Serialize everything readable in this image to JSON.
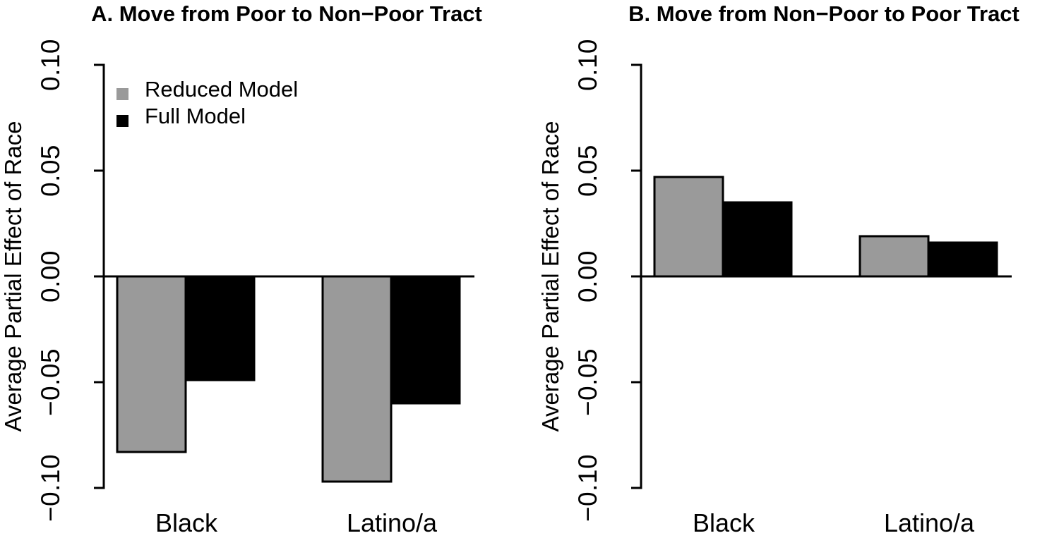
{
  "figure": {
    "background": "#ffffff",
    "text_color": "#000000"
  },
  "chart_data": [
    {
      "type": "bar",
      "panel": "A",
      "title": "A. Move from Poor to Non−Poor Tract",
      "ylabel": "Average Partial Effect of Race",
      "xlabel": "",
      "categories": [
        "Black",
        "Latino/a"
      ],
      "series": [
        {
          "name": "Reduced Model",
          "color": "#9a9a9a",
          "values": [
            -0.083,
            -0.097
          ]
        },
        {
          "name": "Full Model",
          "color": "#000000",
          "values": [
            -0.049,
            -0.06
          ]
        }
      ],
      "ylim": [
        -0.1,
        0.1
      ],
      "yticks": [
        0.1,
        0.05,
        0.0,
        -0.05,
        -0.1
      ],
      "ytick_labels": [
        "0.10",
        "0.05",
        "0.00",
        "−0.05",
        "−0.10"
      ],
      "grid": false,
      "legend_position": "top-left-inside",
      "legend_visible": true,
      "bar_border_color": "#000000"
    },
    {
      "type": "bar",
      "panel": "B",
      "title": "B. Move from Non−Poor to Poor Tract",
      "ylabel": "Average Partial Effect of Race",
      "xlabel": "",
      "categories": [
        "Black",
        "Latino/a"
      ],
      "series": [
        {
          "name": "Reduced Model",
          "color": "#9a9a9a",
          "values": [
            0.047,
            0.019
          ]
        },
        {
          "name": "Full Model",
          "color": "#000000",
          "values": [
            0.035,
            0.016
          ]
        }
      ],
      "ylim": [
        -0.1,
        0.1
      ],
      "yticks": [
        0.1,
        0.05,
        0.0,
        -0.05,
        -0.1
      ],
      "ytick_labels": [
        "0.10",
        "0.05",
        "0.00",
        "−0.05",
        "−0.10"
      ],
      "grid": false,
      "legend_visible": false,
      "bar_border_color": "#000000"
    }
  ],
  "legend": {
    "items": [
      {
        "label": "Reduced Model",
        "color": "#9a9a9a"
      },
      {
        "label": "Full Model",
        "color": "#000000"
      }
    ]
  }
}
